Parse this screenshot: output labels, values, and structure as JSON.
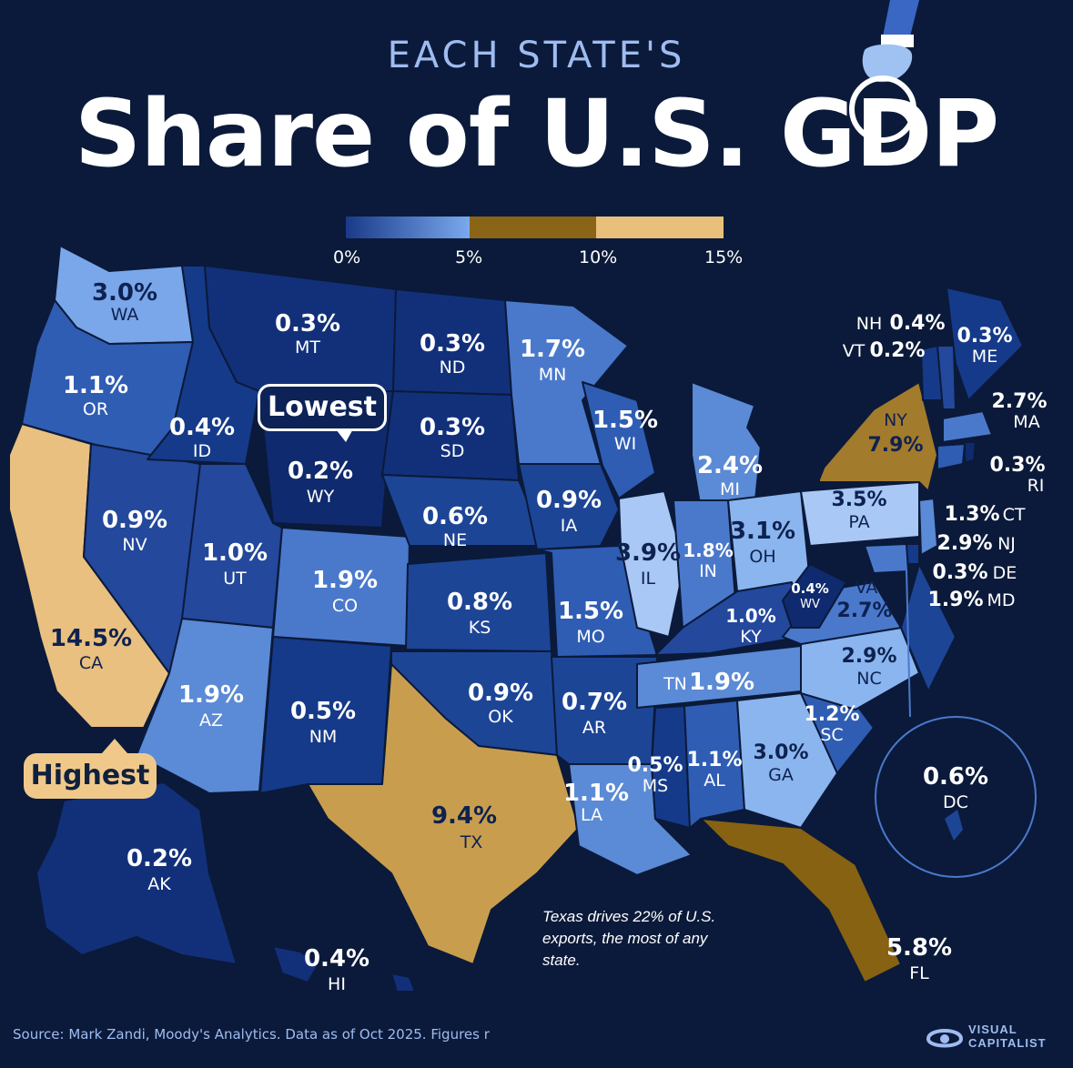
{
  "header": {
    "subtitle": "EACH STATE'S",
    "title": "Share of U.S. GDP"
  },
  "legend": {
    "labels": [
      "0%",
      "5%",
      "10%",
      "15%"
    ],
    "colors": [
      "#1e3f8c",
      "#6f9ee8",
      "#7d5a10",
      "#f0c98a"
    ]
  },
  "callouts": {
    "lowest": "Lowest",
    "highest": "Highest"
  },
  "states": {
    "WA": {
      "pct": "3.0%",
      "abbr": "WA"
    },
    "OR": {
      "pct": "1.1%",
      "abbr": "OR"
    },
    "CA": {
      "pct": "14.5%",
      "abbr": "CA"
    },
    "NV": {
      "pct": "0.9%",
      "abbr": "NV"
    },
    "ID": {
      "pct": "0.4%",
      "abbr": "ID"
    },
    "MT": {
      "pct": "0.3%",
      "abbr": "MT"
    },
    "WY": {
      "pct": "0.2%",
      "abbr": "WY"
    },
    "UT": {
      "pct": "1.0%",
      "abbr": "UT"
    },
    "AZ": {
      "pct": "1.9%",
      "abbr": "AZ"
    },
    "CO": {
      "pct": "1.9%",
      "abbr": "CO"
    },
    "NM": {
      "pct": "0.5%",
      "abbr": "NM"
    },
    "ND": {
      "pct": "0.3%",
      "abbr": "ND"
    },
    "SD": {
      "pct": "0.3%",
      "abbr": "SD"
    },
    "NE": {
      "pct": "0.6%",
      "abbr": "NE"
    },
    "KS": {
      "pct": "0.8%",
      "abbr": "KS"
    },
    "OK": {
      "pct": "0.9%",
      "abbr": "OK"
    },
    "TX": {
      "pct": "9.4%",
      "abbr": "TX"
    },
    "MN": {
      "pct": "1.7%",
      "abbr": "MN"
    },
    "IA": {
      "pct": "0.9%",
      "abbr": "IA"
    },
    "MO": {
      "pct": "1.5%",
      "abbr": "MO"
    },
    "AR": {
      "pct": "0.7%",
      "abbr": "AR"
    },
    "LA": {
      "pct": "1.1%",
      "abbr": "LA"
    },
    "WI": {
      "pct": "1.5%",
      "abbr": "WI"
    },
    "IL": {
      "pct": "3.9%",
      "abbr": "IL"
    },
    "MI": {
      "pct": "2.4%",
      "abbr": "MI"
    },
    "IN": {
      "pct": "1.8%",
      "abbr": "IN"
    },
    "OH": {
      "pct": "3.1%",
      "abbr": "OH"
    },
    "KY": {
      "pct": "1.0%",
      "abbr": "KY"
    },
    "TN": {
      "pct": "1.9%",
      "abbr": "TN"
    },
    "MS": {
      "pct": "0.5%",
      "abbr": "MS"
    },
    "AL": {
      "pct": "1.1%",
      "abbr": "AL"
    },
    "GA": {
      "pct": "3.0%",
      "abbr": "GA"
    },
    "FL": {
      "pct": "5.8%",
      "abbr": "FL"
    },
    "SC": {
      "pct": "1.2%",
      "abbr": "SC"
    },
    "NC": {
      "pct": "2.9%",
      "abbr": "NC"
    },
    "VA": {
      "pct": "2.7%",
      "abbr": "VA"
    },
    "WV": {
      "pct": "0.4%",
      "abbr": "WV"
    },
    "PA": {
      "pct": "3.5%",
      "abbr": "PA"
    },
    "NY": {
      "pct": "7.9%",
      "abbr": "NY"
    },
    "NH": {
      "pct": "0.4%",
      "abbr": "NH"
    },
    "VT": {
      "pct": "0.2%",
      "abbr": "VT"
    },
    "ME": {
      "pct": "0.3%",
      "abbr": "ME"
    },
    "MA": {
      "pct": "2.7%",
      "abbr": "MA"
    },
    "RI": {
      "pct": "0.3%",
      "abbr": "RI"
    },
    "CT": {
      "pct": "1.3%",
      "abbr": "CT"
    },
    "NJ": {
      "pct": "2.9%",
      "abbr": "NJ"
    },
    "DE": {
      "pct": "0.3%",
      "abbr": "DE"
    },
    "MD": {
      "pct": "1.9%",
      "abbr": "MD"
    },
    "DC": {
      "pct": "0.6%",
      "abbr": "DC"
    },
    "AK": {
      "pct": "0.2%",
      "abbr": "AK"
    },
    "HI": {
      "pct": "0.4%",
      "abbr": "HI"
    }
  },
  "colors": {
    "background": "#0b1a3a",
    "darkest": "#0d2a6e",
    "dark": "#1a3f8f",
    "mid": "#2d5bb0",
    "light": "#5b8ad6",
    "lightest": "#a9c8f5",
    "gold_dark": "#a37b2c",
    "gold_mid": "#c79a4a",
    "gold_light": "#f0c98a"
  },
  "note": "Texas drives 22% of U.S. exports, the most of any state.",
  "source": "Source: Mark Zandi, Moody's Analytics. Data as of Oct 2025. Figures r",
  "logo": {
    "line1": "VISUAL",
    "line2": "CAPITALIST"
  }
}
